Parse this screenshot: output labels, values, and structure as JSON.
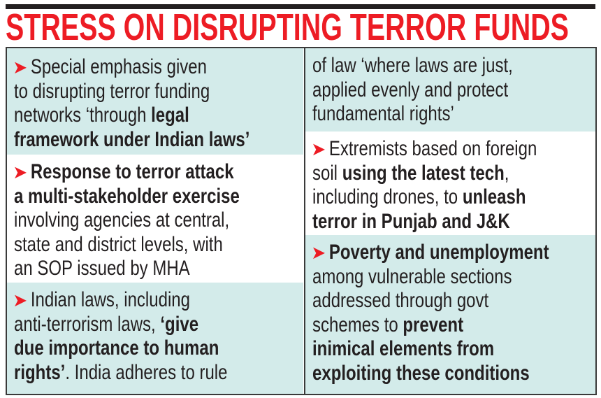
{
  "title": "STRESS ON DISRUPTING TERROR FUNDS",
  "colors": {
    "title": "#ed1c24",
    "arrow": "#ed1c24",
    "panel_tint": "#d3ebea"
  },
  "arrow_icon": "red-arrowhead",
  "left": [
    {
      "bg": "cyan",
      "arrow": true,
      "lines": [
        [
          {
            "t": "Special emphasis given",
            "b": false
          }
        ],
        [
          {
            "t": "to disrupting terror funding",
            "b": false
          }
        ],
        [
          {
            "t": "networks ‘through ",
            "b": false
          },
          {
            "t": "legal",
            "b": true
          }
        ],
        [
          {
            "t": "framework under Indian laws’",
            "b": true
          }
        ]
      ]
    },
    {
      "bg": "white",
      "arrow": true,
      "lines": [
        [
          {
            "t": "Response to terror attack",
            "b": true
          }
        ],
        [
          {
            "t": "a multi-stakeholder exercise",
            "b": true
          }
        ],
        [
          {
            "t": "involving agencies at central,",
            "b": false
          }
        ],
        [
          {
            "t": "state and district levels, with",
            "b": false
          }
        ],
        [
          {
            "t": "an SOP issued by MHA",
            "b": false
          }
        ]
      ]
    },
    {
      "bg": "cyan",
      "arrow": true,
      "lines": [
        [
          {
            "t": "Indian laws, including",
            "b": false
          }
        ],
        [
          {
            "t": "anti-terrorism laws, ",
            "b": false
          },
          {
            "t": "‘give",
            "b": true
          }
        ],
        [
          {
            "t": "due importance to human",
            "b": true
          }
        ],
        [
          {
            "t": "rights’",
            "b": true
          },
          {
            "t": ". India adheres to rule",
            "b": false
          }
        ]
      ]
    }
  ],
  "right": [
    {
      "bg": "cyan",
      "arrow": false,
      "lines": [
        [
          {
            "t": "of law ‘where laws are just,",
            "b": false
          }
        ],
        [
          {
            "t": "applied evenly and protect",
            "b": false
          }
        ],
        [
          {
            "t": "fundamental rights’",
            "b": false
          }
        ]
      ]
    },
    {
      "bg": "white",
      "arrow": true,
      "lines": [
        [
          {
            "t": "Extremists based on foreign",
            "b": false
          }
        ],
        [
          {
            "t": "soil ",
            "b": false
          },
          {
            "t": "using the latest tech",
            "b": true
          },
          {
            "t": ",",
            "b": false
          }
        ],
        [
          {
            "t": "including drones, to ",
            "b": false
          },
          {
            "t": "unleash",
            "b": true
          }
        ],
        [
          {
            "t": "terror in Punjab and J&K",
            "b": true
          }
        ]
      ]
    },
    {
      "bg": "cyan",
      "arrow": true,
      "lines": [
        [
          {
            "t": "Poverty and unemployment",
            "b": true
          }
        ],
        [
          {
            "t": "among vulnerable sections",
            "b": false
          }
        ],
        [
          {
            "t": "addressed through govt",
            "b": false
          }
        ],
        [
          {
            "t": "schemes to ",
            "b": false
          },
          {
            "t": "prevent",
            "b": true
          }
        ],
        [
          {
            "t": "inimical elements from",
            "b": true
          }
        ],
        [
          {
            "t": "exploiting these conditions",
            "b": true
          }
        ]
      ]
    }
  ]
}
